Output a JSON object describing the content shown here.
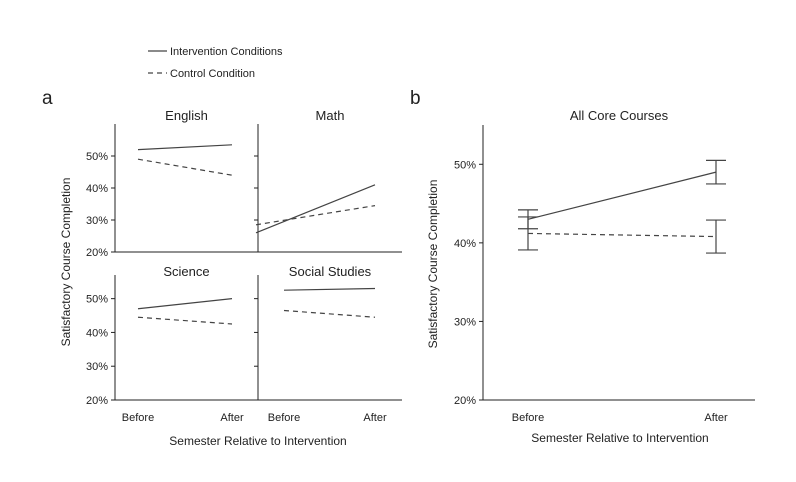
{
  "legend": {
    "intervention": "Intervention Conditions",
    "control": "Control Condition"
  },
  "panel_labels": {
    "a": "a",
    "b": "b"
  },
  "colors": {
    "line": "#444444",
    "axis": "#222222"
  },
  "chart_data": [
    {
      "type": "line",
      "panel": "a",
      "title": "English",
      "categories": [
        "Before",
        "After"
      ],
      "ylim": [
        20,
        60
      ],
      "yticks": [
        "20%",
        "30%",
        "40%",
        "50%"
      ],
      "series": [
        {
          "name": "Intervention Conditions",
          "style": "solid",
          "values": [
            52,
            53.5
          ]
        },
        {
          "name": "Control Condition",
          "style": "dashed",
          "values": [
            49,
            44
          ]
        }
      ]
    },
    {
      "type": "line",
      "panel": "a",
      "title": "Math",
      "categories": [
        "Before",
        "After"
      ],
      "ylim": [
        20,
        60
      ],
      "series": [
        {
          "name": "Intervention Conditions",
          "style": "solid",
          "values": [
            26,
            41
          ]
        },
        {
          "name": "Control Condition",
          "style": "dashed",
          "values": [
            28.5,
            34.5
          ]
        }
      ]
    },
    {
      "type": "line",
      "panel": "a",
      "title": "Science",
      "categories": [
        "Before",
        "After"
      ],
      "ylim": [
        20,
        57
      ],
      "yticks": [
        "20%",
        "30%",
        "40%",
        "50%"
      ],
      "xticks": [
        "Before",
        "After"
      ],
      "series": [
        {
          "name": "Intervention Conditions",
          "style": "solid",
          "values": [
            47,
            50
          ]
        },
        {
          "name": "Control Condition",
          "style": "dashed",
          "values": [
            44.5,
            42.5
          ]
        }
      ]
    },
    {
      "type": "line",
      "panel": "a",
      "title": "Social Studies",
      "categories": [
        "Before",
        "After"
      ],
      "ylim": [
        20,
        57
      ],
      "xticks": [
        "Before",
        "After"
      ],
      "series": [
        {
          "name": "Intervention Conditions",
          "style": "solid",
          "values": [
            52.5,
            53
          ]
        },
        {
          "name": "Control Condition",
          "style": "dashed",
          "values": [
            46.5,
            44.5
          ]
        }
      ]
    },
    {
      "type": "line",
      "panel": "b",
      "title": "All Core Courses",
      "categories": [
        "Before",
        "After"
      ],
      "ylim": [
        20,
        55
      ],
      "yticks": [
        "20%",
        "30%",
        "40%",
        "50%"
      ],
      "xticks": [
        "Before",
        "After"
      ],
      "series": [
        {
          "name": "Intervention Conditions",
          "style": "solid",
          "values": [
            43,
            49
          ],
          "error": [
            1.2,
            1.5
          ]
        },
        {
          "name": "Control Condition",
          "style": "dashed",
          "values": [
            41.2,
            40.8
          ],
          "error": [
            2.1,
            2.1
          ]
        }
      ]
    }
  ],
  "axis_labels": {
    "a_y": "Satisfactory Course Completion",
    "a_x": "Semester Relative to Intervention",
    "b_y": "Satisfactory Course Completion",
    "b_x": "Semester Relative to Intervention"
  }
}
